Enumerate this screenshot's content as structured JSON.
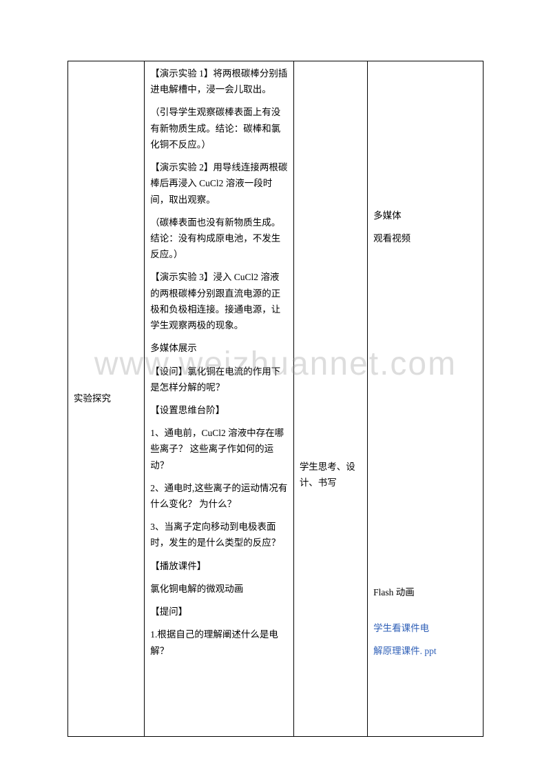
{
  "watermark": "www.weizhuannet.com",
  "col1": {
    "label": "实验探究"
  },
  "col2": {
    "p1": "【演示实验 1】将两根碳棒分别插进电解槽中，浸一会儿取出。",
    "p2": "（引导学生观察碳棒表面上有没有新物质生成。结论：碳棒和氯化铜不反应。）",
    "p3": "【演示实验 2】用导线连接两根碳棒后再浸入 CuCl2 溶液一段时间，取出观察。",
    "p4": "（碳棒表面也没有新物质生成。结论：没有构成原电池，不发生反应。）",
    "p5": "【演示实验 3】浸入 CuCl2 溶液的两根碳棒分别跟直流电源的正极和负极相连接。接通电源，让学生观察两极的现象。",
    "p6": "多媒体展示",
    "p7": "【设问】氯化铜在电流的作用下是怎样分解的呢？",
    "p8": "【设置思维台阶】",
    "p9": "1、通电前，CuCl2 溶液中存在哪些离子？ 这些离子作如何的运动？",
    "p10": "2、通电时,这些离子的运动情况有什么变化？ 为什么？",
    "p11": "3、当离子定向移动到电极表面时，发生的是什么类型的反应？",
    "p12": "【播放课件】",
    "p13": "氯化铜电解的微观动画",
    "p14": "【提问】",
    "p15": "1.根据自己的理解阐述什么是电解？"
  },
  "col3": {
    "text": "学生思考、设计、书写"
  },
  "col4": {
    "top1": "多媒体",
    "top2": "观看视频",
    "mid": "Flash 动画",
    "bottom_plain": "学生看课件",
    "bottom_link_a": "电",
    "bottom_link_b": "解原理课件. ppt"
  }
}
